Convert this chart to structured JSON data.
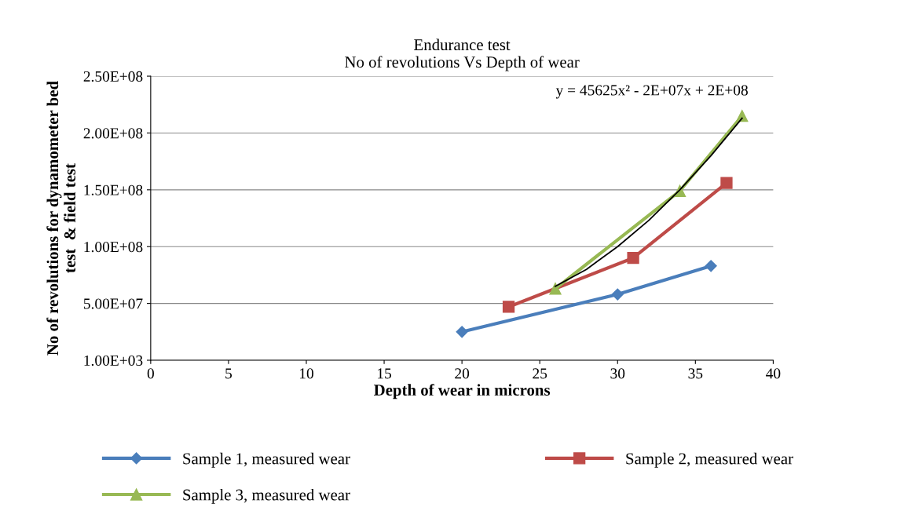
{
  "chart_data": {
    "type": "line",
    "title": "Endurance test\nNo of revolutions Vs Depth of wear",
    "xlabel": "Depth of wear in microns",
    "ylabel": "No of revolutions for dynamometer bed\ntest  & field test",
    "series": [
      {
        "name": "Sample 1, measured wear",
        "color": "#4a7ebb",
        "marker": "diamond",
        "x": [
          20,
          30,
          36
        ],
        "values": [
          25000000,
          58000000,
          83000000
        ]
      },
      {
        "name": "Sample 2, measured wear",
        "color": "#be4b48",
        "marker": "square",
        "x": [
          23,
          31,
          37
        ],
        "values": [
          47000000,
          90000000,
          156000000
        ]
      },
      {
        "name": "Sample 3, measured wear",
        "color": "#98b954",
        "marker": "triangle",
        "x": [
          26,
          34,
          38
        ],
        "values": [
          63000000,
          149000000,
          215000000
        ]
      },
      {
        "color": "#000000",
        "marker": "none",
        "x": [
          26,
          28,
          30,
          32,
          34,
          36,
          38
        ],
        "values": [
          65000000,
          80000000,
          100000000,
          123000000,
          150000000,
          180000000,
          213000000
        ]
      }
    ],
    "annotations": [
      "y = 45625x² - 2E+07x + 2E+08"
    ],
    "xlim": [
      0,
      40
    ],
    "xticks": [
      0,
      5,
      10,
      15,
      20,
      25,
      30,
      35,
      40
    ],
    "ylim": [
      1000,
      250000000
    ],
    "yticks": [
      {
        "value": 1000,
        "label": "1.00E+03"
      },
      {
        "value": 50000000,
        "label": "5.00E+07"
      },
      {
        "value": 100000000,
        "label": "1.00E+08"
      },
      {
        "value": 150000000,
        "label": "1.50E+08"
      },
      {
        "value": 200000000,
        "label": "2.00E+08"
      },
      {
        "value": 250000000,
        "label": "2.50E+08"
      }
    ],
    "grid": "y",
    "legend": "bottom"
  }
}
